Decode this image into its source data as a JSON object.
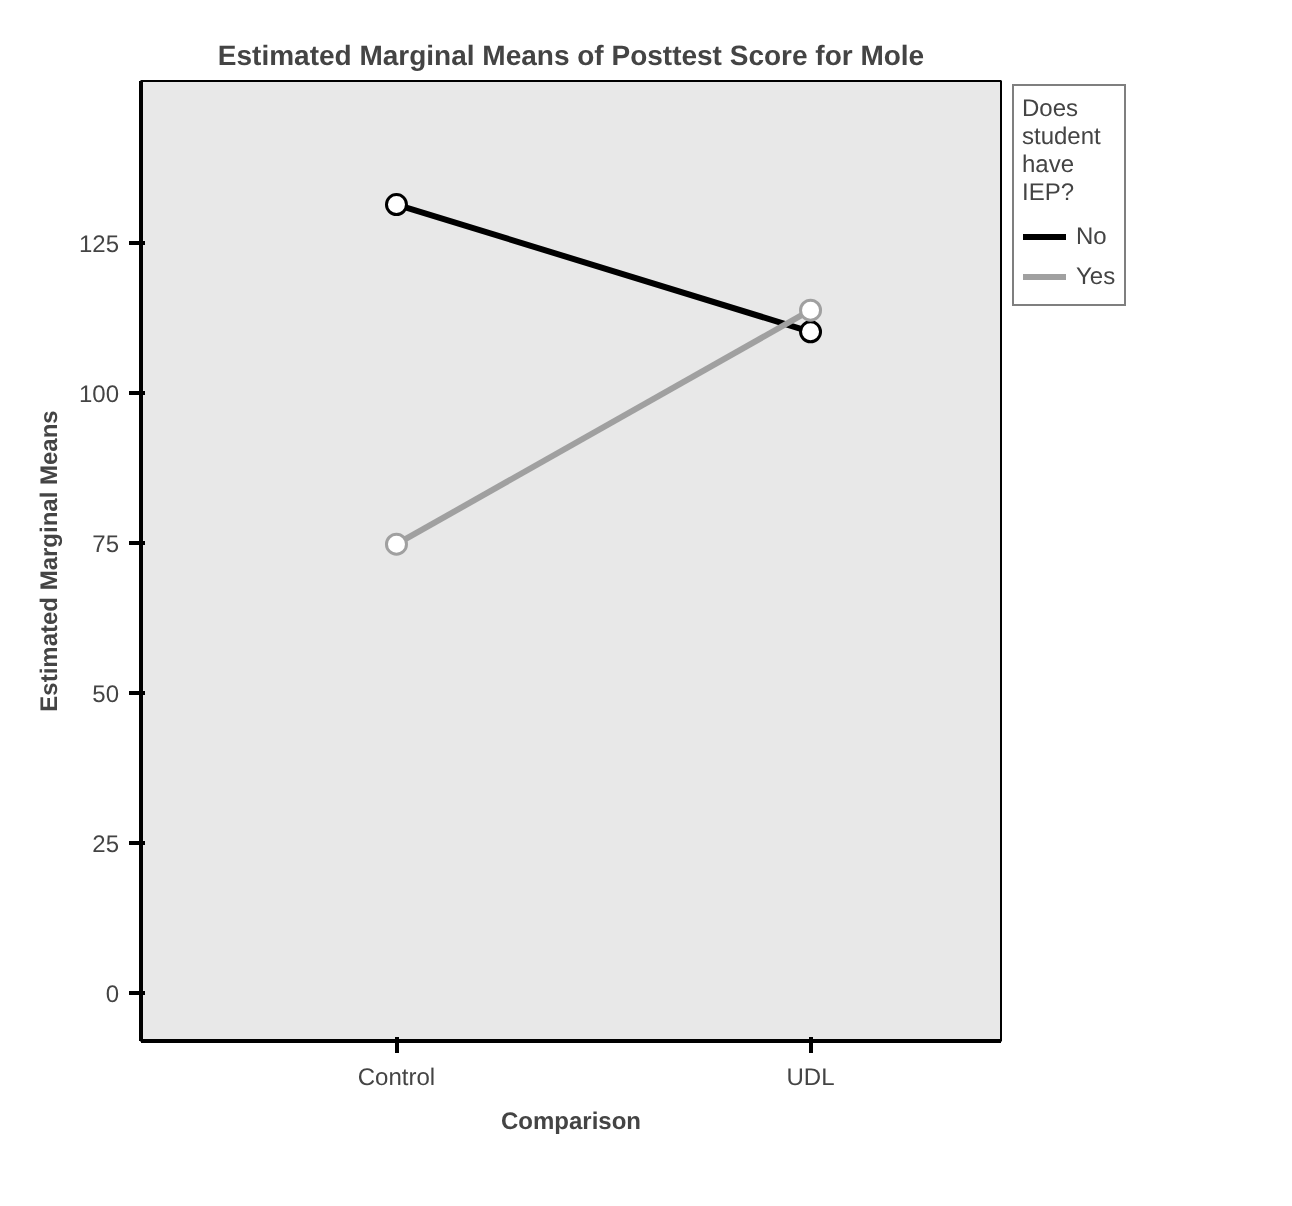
{
  "chart_data": {
    "type": "line",
    "title": "Estimated Marginal Means of Posttest Score for Mole",
    "xlabel": "Comparison",
    "ylabel": "Estimated Marginal Means",
    "legend_title": "Does student have IEP?",
    "categories": [
      "Control",
      "UDL"
    ],
    "series": [
      {
        "name": "No",
        "color": "#000000",
        "values": [
          131.4,
          110.2
        ]
      },
      {
        "name": "Yes",
        "color": "#a0a0a0",
        "values": [
          74.8,
          113.8
        ]
      }
    ],
    "ylim": [
      -8,
      152
    ],
    "yticks": [
      0,
      25,
      50,
      75,
      100,
      125
    ],
    "grid": false,
    "legend": "right",
    "marker": "circle",
    "line_style": "solid"
  }
}
